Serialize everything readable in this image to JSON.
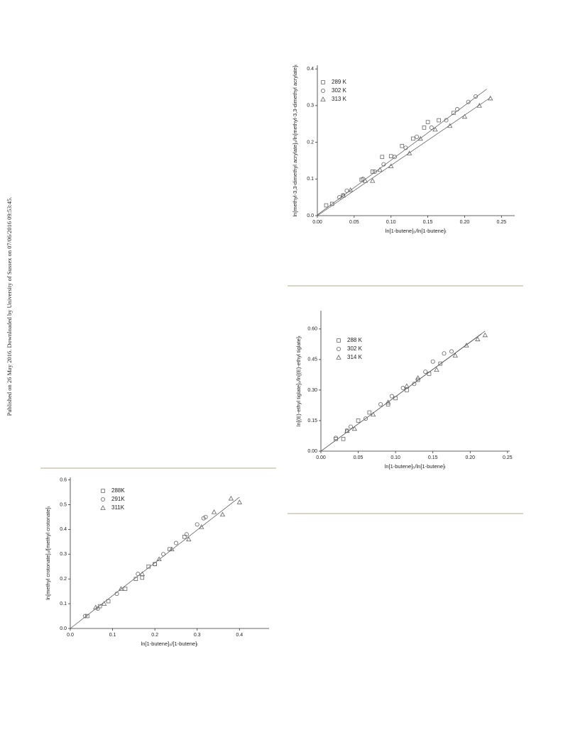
{
  "sidebar": "Published on 26 May 2016. Downloaded by University of Sussex on 07/06/2016 09:53:45.",
  "chart_data": [
    {
      "type": "scatter",
      "x_label": "ln[1-butene]₀/ln[1-butene]ₜ",
      "y_label": "ln[methyl-3,3-dimethyl acrylate]₀/ln[methyl-3,3-dimethyl acrylate]ₜ",
      "xlim": [
        0,
        0.268
      ],
      "ylim": [
        0,
        0.41
      ],
      "xticks": [
        {
          "value": 0,
          "label": "0.00"
        },
        0.05,
        {
          "value": 0.1,
          "label": "0.10"
        },
        0.15,
        {
          "value": 0.2,
          "label": "0.20"
        },
        0.25
      ],
      "yticks": [
        {
          "value": 0,
          "label": "0.0"
        },
        0.1,
        0.2,
        0.3,
        0.4
      ],
      "series": [
        {
          "name": "289 K",
          "marker": "square",
          "color": "#666666",
          "x": [
            0.012,
            0.02,
            0.035,
            0.06,
            0.075,
            0.088,
            0.1,
            0.115,
            0.13,
            0.145,
            0.15,
            0.165,
            0.185
          ],
          "values": [
            0.028,
            0.032,
            0.055,
            0.098,
            0.12,
            0.16,
            0.162,
            0.19,
            0.21,
            0.24,
            0.255,
            0.26,
            0.28
          ]
        },
        {
          "name": "302 K",
          "marker": "circle",
          "color": "#666666",
          "x": [
            0.03,
            0.04,
            0.062,
            0.078,
            0.09,
            0.105,
            0.12,
            0.135,
            0.155,
            0.175,
            0.19,
            0.205,
            0.215
          ],
          "values": [
            0.05,
            0.068,
            0.1,
            0.12,
            0.14,
            0.16,
            0.185,
            0.215,
            0.24,
            0.26,
            0.29,
            0.31,
            0.325
          ]
        },
        {
          "name": "313 K",
          "marker": "triangle",
          "color": "#666666",
          "x": [
            0.035,
            0.045,
            0.065,
            0.075,
            0.085,
            0.1,
            0.125,
            0.14,
            0.16,
            0.18,
            0.2,
            0.22,
            0.235
          ],
          "values": [
            0.055,
            0.07,
            0.095,
            0.095,
            0.125,
            0.135,
            0.17,
            0.21,
            0.235,
            0.245,
            0.27,
            0.3,
            0.32
          ]
        }
      ],
      "lines": [
        {
          "x": [
            0,
            0.23
          ],
          "values": [
            0.002,
            0.345
          ]
        },
        {
          "x": [
            0,
            0.235
          ],
          "values": [
            0,
            0.322
          ]
        }
      ]
    },
    {
      "type": "scatter",
      "x_label": "ln[1-butene]₀/ln[1-butene]ₜ",
      "y_label": "ln[(E)-ethyl tiglate]₀/ln[(E)-ethyl tiglate]ₜ",
      "xlim": [
        0,
        0.253
      ],
      "ylim": [
        0,
        0.69
      ],
      "xticks": [
        {
          "value": 0,
          "label": "0.00"
        },
        0.05,
        {
          "value": 0.1,
          "label": "0.10"
        },
        0.15,
        {
          "value": 0.2,
          "label": "0.20"
        },
        0.25
      ],
      "yticks": [
        {
          "value": 0,
          "label": "0.00"
        },
        0.15,
        {
          "value": 0.3,
          "label": "0.30"
        },
        0.45,
        {
          "value": 0.6,
          "label": "0.60"
        }
      ],
      "series": [
        {
          "name": "288 K",
          "marker": "square",
          "color": "#666666",
          "x": [
            0.02,
            0.03,
            0.035,
            0.05,
            0.065,
            0.09,
            0.1,
            0.115,
            0.13,
            0.145,
            0.16
          ],
          "values": [
            0.06,
            0.06,
            0.1,
            0.15,
            0.19,
            0.23,
            0.26,
            0.3,
            0.35,
            0.38,
            0.43
          ]
        },
        {
          "name": "302 K",
          "marker": "circle",
          "color": "#666666",
          "x": [
            0.02,
            0.04,
            0.06,
            0.08,
            0.095,
            0.11,
            0.125,
            0.14,
            0.15,
            0.165,
            0.175
          ],
          "values": [
            0.065,
            0.12,
            0.16,
            0.23,
            0.27,
            0.31,
            0.33,
            0.39,
            0.44,
            0.48,
            0.49
          ]
        },
        {
          "name": "314 K",
          "marker": "triangle",
          "color": "#666666",
          "x": [
            0.035,
            0.045,
            0.07,
            0.09,
            0.115,
            0.13,
            0.155,
            0.18,
            0.195,
            0.21,
            0.22
          ],
          "values": [
            0.1,
            0.11,
            0.18,
            0.24,
            0.32,
            0.36,
            0.4,
            0.47,
            0.52,
            0.55,
            0.57
          ]
        }
      ],
      "lines": [
        {
          "x": [
            0,
            0.22
          ],
          "values": [
            0,
            0.59
          ]
        },
        {
          "x": [
            0,
            0.215
          ],
          "values": [
            0,
            0.575
          ]
        }
      ]
    },
    {
      "type": "scatter",
      "x_label": "ln[1-butene]₀/[1-butene]ₜ",
      "y_label": "ln[methyl crotonate]₀/[methyl crotonate]ₜ",
      "xlim": [
        0,
        0.47
      ],
      "ylim": [
        0,
        0.61
      ],
      "xticks": [
        {
          "value": 0,
          "label": "0.0"
        },
        0.1,
        0.2,
        0.3,
        0.4
      ],
      "yticks": [
        {
          "value": 0,
          "label": "0.0"
        },
        0.1,
        0.2,
        0.3,
        0.4,
        0.5,
        0.6
      ],
      "series": [
        {
          "name": "288K",
          "marker": "square",
          "color": "#666666",
          "x": [
            0.04,
            0.07,
            0.09,
            0.13,
            0.155,
            0.17,
            0.185,
            0.2,
            0.235,
            0.27
          ],
          "values": [
            0.05,
            0.09,
            0.11,
            0.16,
            0.2,
            0.205,
            0.25,
            0.26,
            0.32,
            0.37
          ]
        },
        {
          "name": "291K",
          "marker": "circle",
          "color": "#666666",
          "x": [
            0.035,
            0.065,
            0.11,
            0.16,
            0.2,
            0.22,
            0.25,
            0.275,
            0.3,
            0.315,
            0.32
          ],
          "values": [
            0.05,
            0.08,
            0.14,
            0.22,
            0.26,
            0.3,
            0.345,
            0.38,
            0.42,
            0.445,
            0.45
          ]
        },
        {
          "name": "311K",
          "marker": "triangle",
          "color": "#666666",
          "x": [
            0.06,
            0.08,
            0.12,
            0.17,
            0.21,
            0.24,
            0.28,
            0.31,
            0.34,
            0.36,
            0.38,
            0.4
          ],
          "values": [
            0.085,
            0.1,
            0.16,
            0.22,
            0.28,
            0.32,
            0.36,
            0.41,
            0.47,
            0.46,
            0.525,
            0.51
          ]
        }
      ],
      "lines": [
        {
          "x": [
            0,
            0.4
          ],
          "values": [
            0,
            0.53
          ]
        }
      ]
    }
  ]
}
